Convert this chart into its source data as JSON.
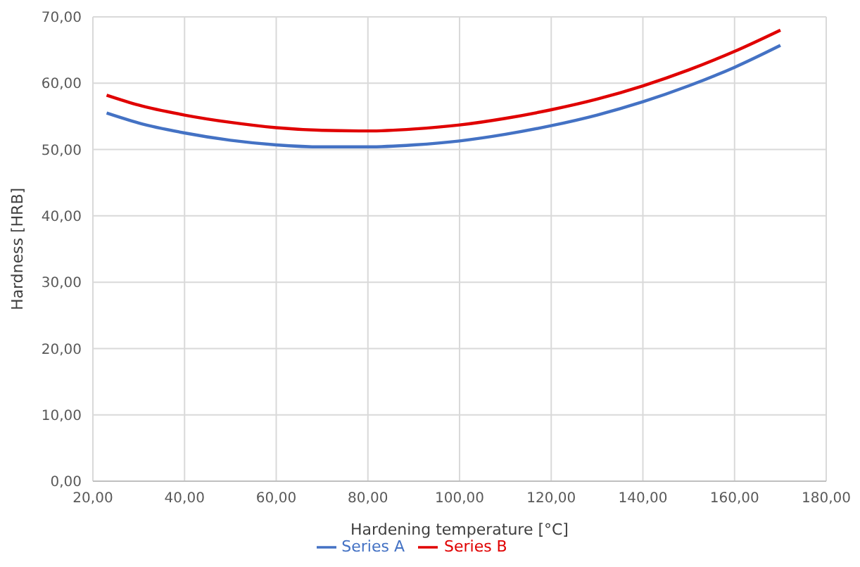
{
  "chart_data": {
    "type": "line",
    "xlabel": "Hardening temperature [°C]",
    "ylabel": "Hardness [HRB]",
    "x": [
      23,
      30,
      40,
      50,
      60,
      70,
      80,
      90,
      100,
      110,
      120,
      130,
      140,
      150,
      160,
      170
    ],
    "series": [
      {
        "name": "Series A",
        "color": "#4472c4",
        "values": [
          55.5,
          54.0,
          52.5,
          51.4,
          50.7,
          50.4,
          50.4,
          50.7,
          51.3,
          52.3,
          53.6,
          55.2,
          57.2,
          59.6,
          62.4,
          65.7
        ]
      },
      {
        "name": "Series B",
        "color": "#e00000",
        "values": [
          58.2,
          56.7,
          55.2,
          54.1,
          53.3,
          52.9,
          52.8,
          53.1,
          53.7,
          54.7,
          56.0,
          57.6,
          59.6,
          62.0,
          64.8,
          68.0
        ]
      }
    ],
    "xlim": [
      20,
      180
    ],
    "xticks": [
      {
        "value": 20,
        "label": "20,00"
      },
      {
        "value": 40,
        "label": "40,00"
      },
      {
        "value": 60,
        "label": "60,00"
      },
      {
        "value": 80,
        "label": "80,00"
      },
      {
        "value": 100,
        "label": "100,00"
      },
      {
        "value": 120,
        "label": "120,00"
      },
      {
        "value": 140,
        "label": "140,00"
      },
      {
        "value": 160,
        "label": "160,00"
      },
      {
        "value": 180,
        "label": "180,00"
      }
    ],
    "ylim": [
      0,
      70
    ],
    "yticks": [
      {
        "value": 0,
        "label": "0,00"
      },
      {
        "value": 10,
        "label": "10,00"
      },
      {
        "value": 20,
        "label": "20,00"
      },
      {
        "value": 30,
        "label": "30,00"
      },
      {
        "value": 40,
        "label": "40,00"
      },
      {
        "value": 50,
        "label": "50,00"
      },
      {
        "value": 60,
        "label": "60,00"
      },
      {
        "value": 70,
        "label": "70,00"
      }
    ],
    "grid": true,
    "legend": "bottom",
    "marker": "none",
    "line_style": "solid"
  }
}
